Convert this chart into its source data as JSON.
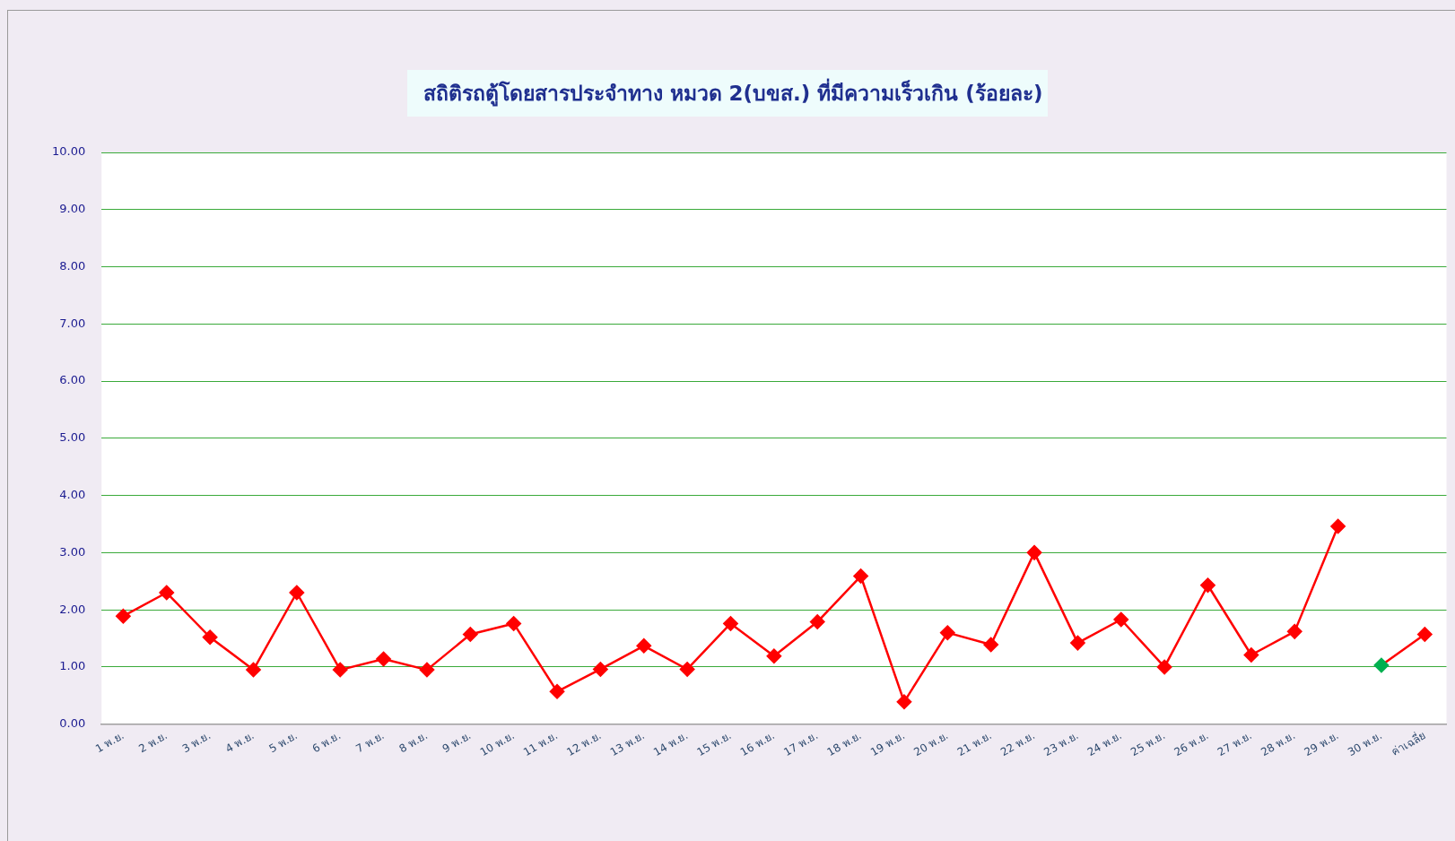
{
  "chart_data": {
    "type": "line",
    "title": "สถิติรถตู้โดยสารประจำทาง หมวด 2(บขส.) ที่มีความเร็วเกิน (ร้อยละ)",
    "categories": [
      "1 พ.ย.",
      "2 พ.ย.",
      "3 พ.ย.",
      "4 พ.ย.",
      "5 พ.ย.",
      "6 พ.ย.",
      "7 พ.ย.",
      "8 พ.ย.",
      "9 พ.ย.",
      "10 พ.ย.",
      "11 พ.ย.",
      "12 พ.ย.",
      "13 พ.ย.",
      "14 พ.ย.",
      "15 พ.ย.",
      "16 พ.ย.",
      "17 พ.ย.",
      "18 พ.ย.",
      "19 พ.ย.",
      "20 พ.ย.",
      "21 พ.ย.",
      "22 พ.ย.",
      "23 พ.ย.",
      "24 พ.ย.",
      "25 พ.ย.",
      "26 พ.ย.",
      "27 พ.ย.",
      "28 พ.ย.",
      "29 พ.ย.",
      "30 พ.ย.",
      "ค่าเฉลี่ย"
    ],
    "series": [
      {
        "color": "#ff0000",
        "values": [
          1.89,
          2.3,
          1.52,
          0.95,
          2.3,
          0.95,
          1.14,
          0.95,
          1.57,
          1.76,
          0.57,
          0.96,
          1.37,
          0.96,
          1.76,
          1.19,
          1.79,
          2.59,
          0.39,
          1.6,
          1.39,
          3.0,
          1.42,
          1.83,
          1.0,
          2.43,
          1.21,
          1.62,
          3.46,
          null,
          null
        ]
      },
      {
        "color": "#ff0000",
        "colors": [
          null,
          null,
          null,
          null,
          null,
          null,
          null,
          null,
          null,
          null,
          null,
          null,
          null,
          null,
          null,
          null,
          null,
          null,
          null,
          null,
          null,
          null,
          null,
          null,
          null,
          null,
          null,
          null,
          null,
          "#00b050",
          "#ff0000"
        ],
        "values": [
          null,
          null,
          null,
          null,
          null,
          null,
          null,
          null,
          null,
          null,
          null,
          null,
          null,
          null,
          null,
          null,
          null,
          null,
          null,
          null,
          null,
          null,
          null,
          null,
          null,
          null,
          null,
          null,
          null,
          1.03,
          1.57
        ]
      }
    ],
    "ylim": [
      0,
      10
    ],
    "yticks": [
      {
        "value": 0,
        "label": "0.00"
      },
      {
        "value": 1,
        "label": "1.00"
      },
      {
        "value": 2,
        "label": "2.00"
      },
      {
        "value": 3,
        "label": "3.00"
      },
      {
        "value": 4,
        "label": "4.00"
      },
      {
        "value": 5,
        "label": "5.00"
      },
      {
        "value": 6,
        "label": "6.00"
      },
      {
        "value": 7,
        "label": "7.00"
      },
      {
        "value": 8,
        "label": "8.00"
      },
      {
        "value": 9,
        "label": "9.00"
      },
      {
        "value": 10,
        "label": "10.00"
      }
    ],
    "grid": "y",
    "legend": false,
    "marker": "diamond",
    "line_style": "solid"
  }
}
